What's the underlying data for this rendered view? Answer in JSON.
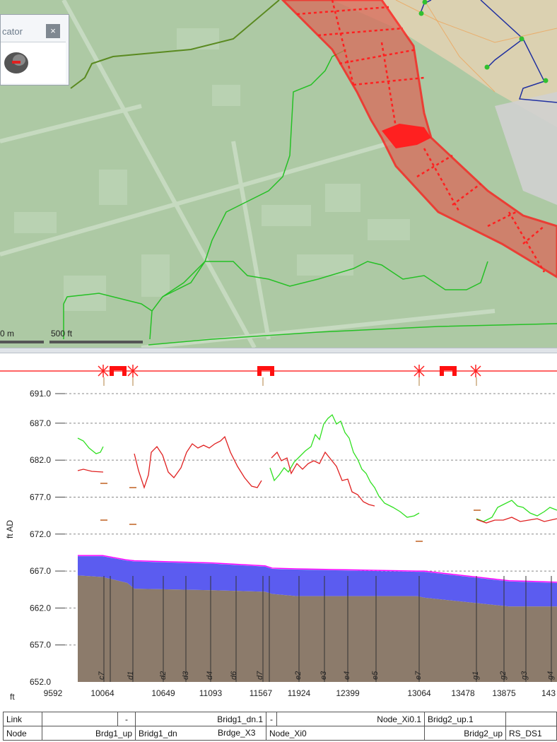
{
  "locator": {
    "title": "cator",
    "close_label": "×"
  },
  "scalebar": {
    "left_label": "0 m",
    "right_label": "500 ft"
  },
  "profile": {
    "y_axis": {
      "label": "ft AD",
      "min": 652.0,
      "max": 691.0,
      "ticks": [
        "691.0",
        "687.0",
        "682.0",
        "677.0",
        "672.0",
        "667.0",
        "662.0",
        "657.0",
        "652.0"
      ]
    },
    "x_unit": "ft",
    "x_ticks": [
      "9592",
      "10064",
      "10649",
      "11093",
      "11567",
      "11924",
      "12399",
      "13064",
      "13478",
      "13875",
      "143"
    ],
    "node_labels": [
      "c7",
      "d1",
      "d2",
      "d3",
      "d4",
      "d6",
      "d7",
      "e2",
      "e3",
      "e4",
      "e5",
      "e7",
      "g1",
      "g2",
      "g3",
      "g4"
    ]
  },
  "table": {
    "row1": {
      "header": "Link",
      "cells": [
        "",
        "-",
        "Bridg1_dn.1",
        "-",
        "Node_Xi0.1",
        "Bridg2_up.1",
        ""
      ]
    },
    "row2": {
      "header": "Node",
      "cells": [
        "Brdg1_up",
        "Bridg1_dn",
        "Brdge_X3",
        "Node_Xi0",
        "Bridg2_up",
        "RS_DS1"
      ]
    }
  },
  "colors": {
    "water": "#5b5cf0",
    "ground": "#8c7b6b",
    "max_level": "#ff00ff",
    "green_series": "#30e020",
    "red_series": "#e02020",
    "floodplain": "#e84040"
  }
}
